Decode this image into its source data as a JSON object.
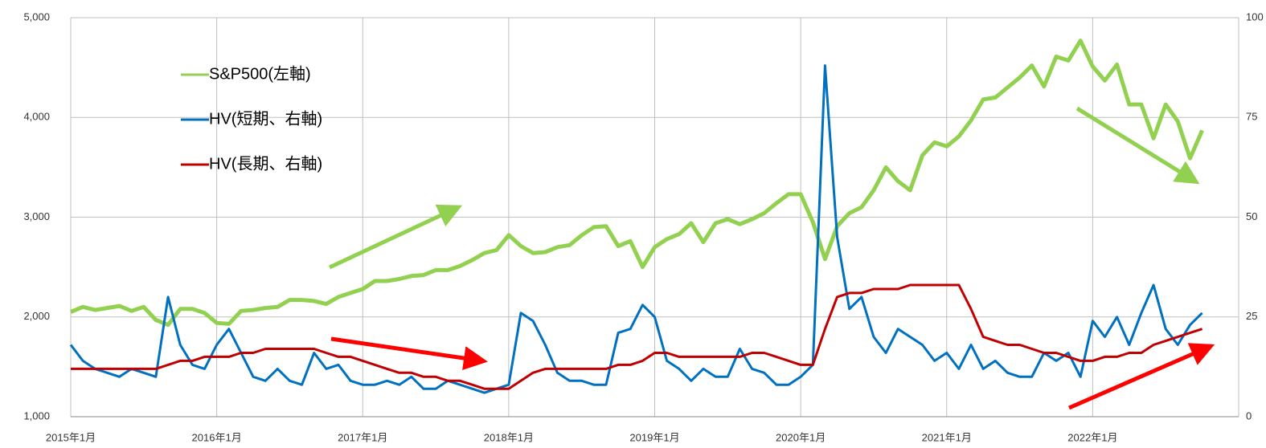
{
  "chart_data": {
    "type": "line",
    "x": [
      "2015-01",
      "2015-02",
      "2015-03",
      "2015-04",
      "2015-05",
      "2015-06",
      "2015-07",
      "2015-08",
      "2015-09",
      "2015-10",
      "2015-11",
      "2015-12",
      "2016-01",
      "2016-02",
      "2016-03",
      "2016-04",
      "2016-05",
      "2016-06",
      "2016-07",
      "2016-08",
      "2016-09",
      "2016-10",
      "2016-11",
      "2016-12",
      "2017-01",
      "2017-02",
      "2017-03",
      "2017-04",
      "2017-05",
      "2017-06",
      "2017-07",
      "2017-08",
      "2017-09",
      "2017-10",
      "2017-11",
      "2017-12",
      "2018-01",
      "2018-02",
      "2018-03",
      "2018-04",
      "2018-05",
      "2018-06",
      "2018-07",
      "2018-08",
      "2018-09",
      "2018-10",
      "2018-11",
      "2018-12",
      "2019-01",
      "2019-02",
      "2019-03",
      "2019-04",
      "2019-05",
      "2019-06",
      "2019-07",
      "2019-08",
      "2019-09",
      "2019-10",
      "2019-11",
      "2019-12",
      "2020-01",
      "2020-02",
      "2020-03",
      "2020-04",
      "2020-05",
      "2020-06",
      "2020-07",
      "2020-08",
      "2020-09",
      "2020-10",
      "2020-11",
      "2020-12",
      "2021-01",
      "2021-02",
      "2021-03",
      "2021-04",
      "2021-05",
      "2021-06",
      "2021-07",
      "2021-08",
      "2021-09",
      "2021-10",
      "2021-11",
      "2021-12",
      "2022-01",
      "2022-02",
      "2022-03",
      "2022-04",
      "2022-05",
      "2022-06",
      "2022-07",
      "2022-08",
      "2022-09",
      "2022-10"
    ],
    "series": [
      {
        "name": "S&P500(左軸)",
        "color": "#92d050",
        "axis": "y",
        "values": [
          2050,
          2100,
          2070,
          2090,
          2110,
          2060,
          2100,
          1970,
          1920,
          2080,
          2080,
          2040,
          1940,
          1930,
          2060,
          2070,
          2090,
          2100,
          2170,
          2170,
          2160,
          2130,
          2200,
          2240,
          2280,
          2360,
          2360,
          2380,
          2410,
          2420,
          2470,
          2470,
          2510,
          2570,
          2640,
          2670,
          2820,
          2710,
          2640,
          2650,
          2700,
          2720,
          2820,
          2900,
          2910,
          2710,
          2760,
          2500,
          2700,
          2780,
          2830,
          2940,
          2750,
          2940,
          2980,
          2930,
          2980,
          3040,
          3140,
          3230,
          3230,
          2950,
          2580,
          2910,
          3040,
          3100,
          3270,
          3500,
          3360,
          3270,
          3620,
          3750,
          3710,
          3810,
          3970,
          4180,
          4200,
          4300,
          4400,
          4520,
          4310,
          4610,
          4570,
          4770,
          4510,
          4370,
          4530,
          4130,
          4130,
          3790,
          4130,
          3960,
          3590,
          3870
        ]
      },
      {
        "name": "HV(短期、右軸)",
        "color": "#0070c0",
        "axis": "y2",
        "values": [
          18,
          14,
          12,
          11,
          10,
          12,
          11,
          10,
          30,
          18,
          13,
          12,
          18,
          22,
          16,
          10,
          9,
          12,
          9,
          8,
          16,
          12,
          13,
          9,
          8,
          8,
          9,
          8,
          10,
          7,
          7,
          9,
          8,
          7,
          6,
          7,
          8,
          26,
          24,
          18,
          11,
          9,
          9,
          8,
          8,
          21,
          22,
          28,
          25,
          14,
          12,
          9,
          12,
          10,
          10,
          17,
          12,
          11,
          8,
          8,
          10,
          13,
          88,
          45,
          27,
          30,
          20,
          16,
          22,
          20,
          18,
          14,
          16,
          12,
          18,
          12,
          14,
          11,
          10,
          10,
          16,
          14,
          16,
          10,
          24,
          20,
          25,
          18,
          26,
          33,
          22,
          18,
          23,
          26
        ]
      },
      {
        "name": "HV(長期、右軸)",
        "color": "#c00000",
        "axis": "y2",
        "values": [
          12,
          12,
          12,
          12,
          12,
          12,
          12,
          12,
          13,
          14,
          14,
          15,
          15,
          15,
          16,
          16,
          17,
          17,
          17,
          17,
          17,
          16,
          15,
          15,
          14,
          13,
          12,
          11,
          11,
          10,
          10,
          9,
          9,
          8,
          7,
          7,
          7,
          9,
          11,
          12,
          12,
          12,
          12,
          12,
          12,
          13,
          13,
          14,
          16,
          16,
          15,
          15,
          15,
          15,
          15,
          15,
          16,
          16,
          15,
          14,
          13,
          13,
          22,
          30,
          31,
          31,
          32,
          32,
          32,
          33,
          33,
          33,
          33,
          33,
          27,
          20,
          19,
          18,
          18,
          17,
          16,
          16,
          15,
          14,
          14,
          15,
          15,
          16,
          16,
          18,
          19,
          20,
          21,
          22
        ]
      }
    ],
    "xlim": [
      "2015-01",
      "2023-01"
    ],
    "xticks": [
      {
        "value": "2015-01",
        "label": "2015年1月"
      },
      {
        "value": "2016-01",
        "label": "2016年1月"
      },
      {
        "value": "2017-01",
        "label": "2017年1月"
      },
      {
        "value": "2018-01",
        "label": "2018年1月"
      },
      {
        "value": "2019-01",
        "label": "2019年1月"
      },
      {
        "value": "2020-01",
        "label": "2020年1月"
      },
      {
        "value": "2021-01",
        "label": "2021年1月"
      },
      {
        "value": "2022-01",
        "label": "2022年1月"
      }
    ],
    "ylim": [
      1000,
      5000
    ],
    "yticks": [
      {
        "value": 1000,
        "label": "1,000"
      },
      {
        "value": 2000,
        "label": "2,000"
      },
      {
        "value": 3000,
        "label": "3,000"
      },
      {
        "value": 4000,
        "label": "4,000"
      },
      {
        "value": 5000,
        "label": "5,000"
      }
    ],
    "y2lim": [
      0,
      100
    ],
    "y2ticks": [
      0,
      25,
      50,
      75,
      100
    ],
    "grid": true
  }
}
